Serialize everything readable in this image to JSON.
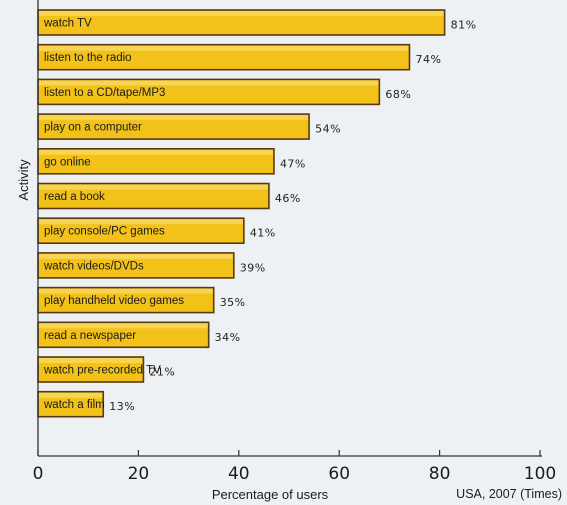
{
  "chart_data": {
    "type": "bar",
    "orientation": "horizontal",
    "categories": [
      "watch TV",
      "listen to the radio",
      "listen to a CD/tape/MP3",
      "play on a computer",
      "go online",
      "read a book",
      "play console/PC games",
      "watch videos/DVDs",
      "play handheld video games",
      "read a newspaper",
      "watch pre-recorded TV",
      "watch a film"
    ],
    "values": [
      81,
      74,
      68,
      54,
      47,
      46,
      41,
      39,
      35,
      34,
      21,
      13
    ],
    "value_labels": [
      "81%",
      "74%",
      "68%",
      "54%",
      "47%",
      "46%",
      "41%",
      "39%",
      "35%",
      "34%",
      "21%",
      "13%"
    ],
    "xlabel": "Percentage of users",
    "ylabel": "Activity",
    "xlim": [
      0,
      100
    ],
    "xticks": [
      0,
      20,
      40,
      60,
      80,
      100
    ],
    "source": "USA, 2007 (Times)",
    "grid": false,
    "bar_color": "#f2c21b",
    "bar_edge_color": "#5a3a10"
  }
}
